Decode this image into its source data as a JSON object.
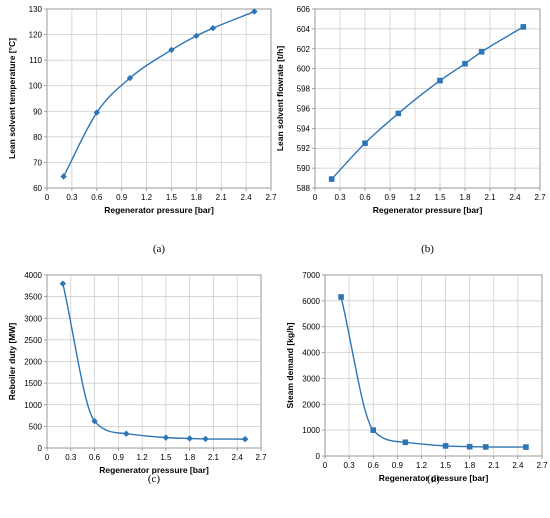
{
  "chart_data": [
    {
      "type": "line",
      "panel_label": "(a)",
      "xlabel": "Regenerator pressure [bar]",
      "ylabel": "Lean solvent temperature  [°C]",
      "xlim": [
        0,
        2.7
      ],
      "ylim": [
        60,
        130
      ],
      "xticks": [
        "0",
        "0.3",
        "0.6",
        "0.9",
        "1.2",
        "1.5",
        "1.8",
        "2.1",
        "2.4",
        "2.7"
      ],
      "yticks": [
        "60",
        "70",
        "80",
        "90",
        "100",
        "110",
        "120",
        "130"
      ],
      "grid": true,
      "marker": "diamond",
      "x": [
        0.2,
        0.6,
        1.0,
        1.5,
        1.8,
        2.0,
        2.5
      ],
      "y": [
        64.5,
        89.5,
        103,
        114,
        119.5,
        122.5,
        129
      ]
    },
    {
      "type": "line",
      "panel_label": "(b)",
      "xlabel": "Regenerator pressure [bar]",
      "ylabel": "Lean solvent flowrate [t/h]",
      "xlim": [
        0,
        2.7
      ],
      "ylim": [
        588,
        606
      ],
      "xticks": [
        "0",
        "0.3",
        "0.6",
        "0.9",
        "1.2",
        "1.5",
        "1.8",
        "2.1",
        "2.4",
        "2.7"
      ],
      "yticks": [
        "588",
        "590",
        "592",
        "594",
        "596",
        "598",
        "600",
        "602",
        "604",
        "606"
      ],
      "grid": true,
      "marker": "square",
      "x": [
        0.2,
        0.6,
        1.0,
        1.5,
        1.8,
        2.0,
        2.5
      ],
      "y": [
        588.9,
        592.5,
        595.5,
        598.8,
        600.5,
        601.7,
        604.2
      ]
    },
    {
      "type": "line",
      "panel_label": "(c)",
      "xlabel": "Regenerator pressure [bar]",
      "ylabel": "Reboiler duty [MW]",
      "xlim": [
        0,
        2.7
      ],
      "ylim": [
        0,
        4000
      ],
      "xticks": [
        "0",
        "0.3",
        "0.6",
        "0.9",
        "1.2",
        "1.5",
        "1.8",
        "2.1",
        "2.4",
        "2.7"
      ],
      "yticks": [
        "0",
        "500",
        "1000",
        "1500",
        "2000",
        "2500",
        "3000",
        "3500",
        "4000"
      ],
      "grid": true,
      "marker": "diamond",
      "x": [
        0.2,
        0.6,
        1.0,
        1.5,
        1.8,
        2.0,
        2.5
      ],
      "y": [
        3800,
        620,
        330,
        240,
        220,
        210,
        205
      ]
    },
    {
      "type": "line",
      "panel_label": "(d)",
      "xlabel": "Regenerator pressure [bar]",
      "ylabel": "Steam demand [kg/h]",
      "xlim": [
        0,
        2.7
      ],
      "ylim": [
        0,
        7000
      ],
      "xticks": [
        "0",
        "0.3",
        "0.6",
        "0.9",
        "1.2",
        "1.5",
        "1.8",
        "2.1",
        "2.4",
        "2.7"
      ],
      "yticks": [
        "0",
        "1000",
        "2000",
        "3000",
        "4000",
        "5000",
        "6000",
        "7000"
      ],
      "grid": true,
      "marker": "square",
      "x": [
        0.2,
        0.6,
        1.0,
        1.5,
        1.8,
        2.0,
        2.5
      ],
      "y": [
        6150,
        1000,
        530,
        390,
        360,
        350,
        345
      ]
    }
  ],
  "style": {
    "series_color": "#2e75b6",
    "grid_color": "#c8c8c8",
    "axis_color": "#808080"
  }
}
